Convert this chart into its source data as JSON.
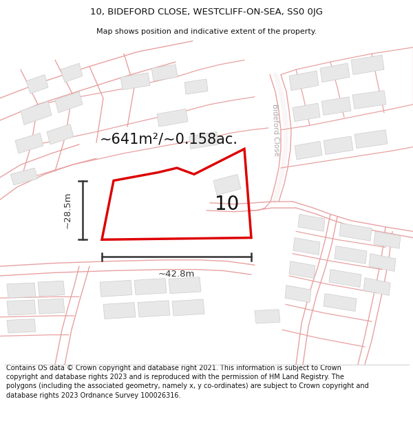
{
  "title_line1": "10, BIDEFORD CLOSE, WESTCLIFF-ON-SEA, SS0 0JG",
  "title_line2": "Map shows position and indicative extent of the property.",
  "footer_text": "Contains OS data © Crown copyright and database right 2021. This information is subject to Crown copyright and database rights 2023 and is reproduced with the permission of HM Land Registry. The polygons (including the associated geometry, namely x, y co-ordinates) are subject to Crown copyright and database rights 2023 Ordnance Survey 100026316.",
  "area_label": "~641m²/~0.158ac.",
  "number_label": "10",
  "width_label": "~42.8m",
  "height_label": "~28.5m",
  "street_label": "Bideford Close",
  "bg_color": "#ffffff",
  "road_color": "#e8a0a0",
  "road_color_light": "#f0c0c0",
  "building_fill": "#e8e8e8",
  "building_edge": "#cccccc",
  "highlight_color": "#dd0000",
  "title_fontsize": 9,
  "footer_fontsize": 7.5
}
